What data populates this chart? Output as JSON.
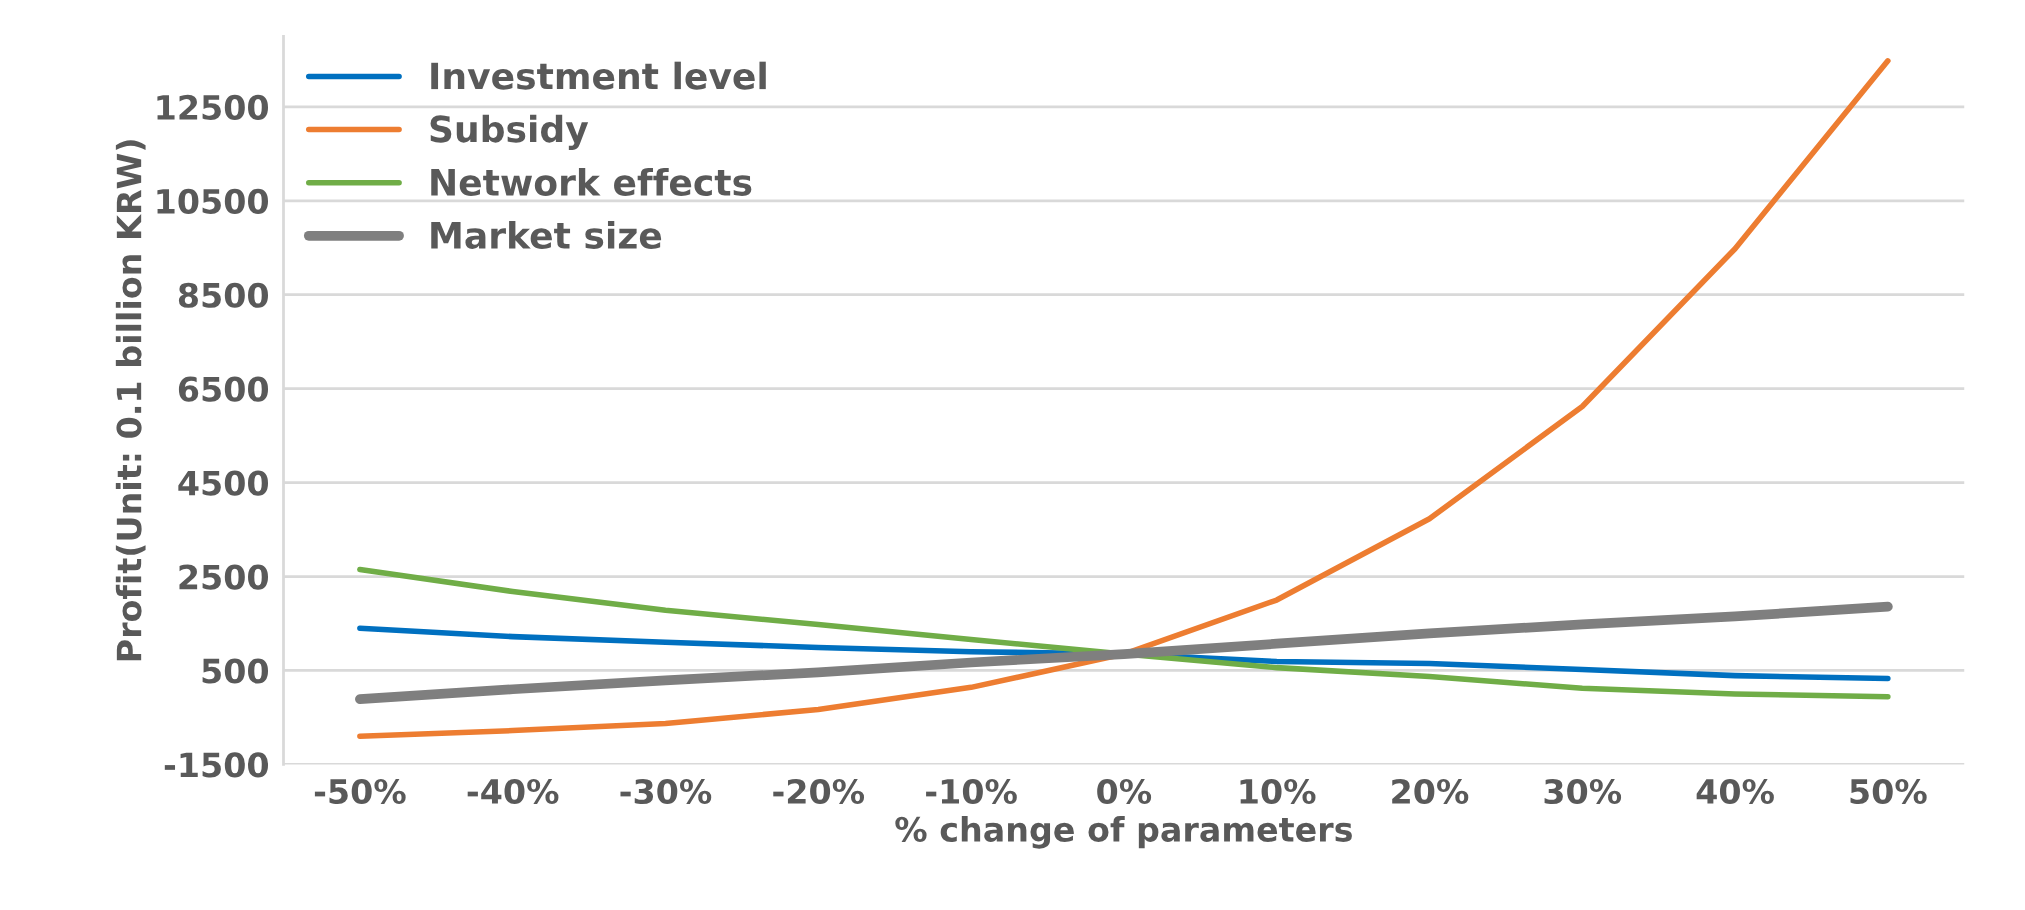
{
  "chart_data": {
    "type": "line",
    "xlabel": "% change of parameters",
    "ylabel": "Profit(Unit: 0.1 billion KRW)",
    "categories": [
      "-50%",
      "-40%",
      "-30%",
      "-20%",
      "-10%",
      "0%",
      "10%",
      "20%",
      "30%",
      "40%",
      "50%"
    ],
    "series": [
      {
        "name": "Investment level",
        "color": "#0070c0",
        "values": [
          1400,
          1220,
          1100,
          990,
          900,
          850,
          690,
          650,
          520,
          390,
          330
        ]
      },
      {
        "name": "Subsidy",
        "color": "#ed7d31",
        "values": [
          -900,
          -780,
          -630,
          -330,
          140,
          850,
          2000,
          3730,
          6120,
          9480,
          13480
        ]
      },
      {
        "name": "Network effects",
        "color": "#70ad47",
        "values": [
          2650,
          2180,
          1780,
          1480,
          1160,
          850,
          560,
          370,
          120,
          0,
          -60
        ]
      },
      {
        "name": "Market size",
        "color": "#7f7f7f",
        "values": [
          -110,
          100,
          290,
          460,
          670,
          850,
          1070,
          1290,
          1480,
          1650,
          1860
        ]
      }
    ],
    "ylim": [
      -1500,
      14000
    ],
    "yticks": [
      -1500,
      500,
      2500,
      4500,
      6500,
      8500,
      10500,
      12500
    ],
    "grid": "y",
    "legend": "top left",
    "marker": "none",
    "line_style": "solid"
  }
}
